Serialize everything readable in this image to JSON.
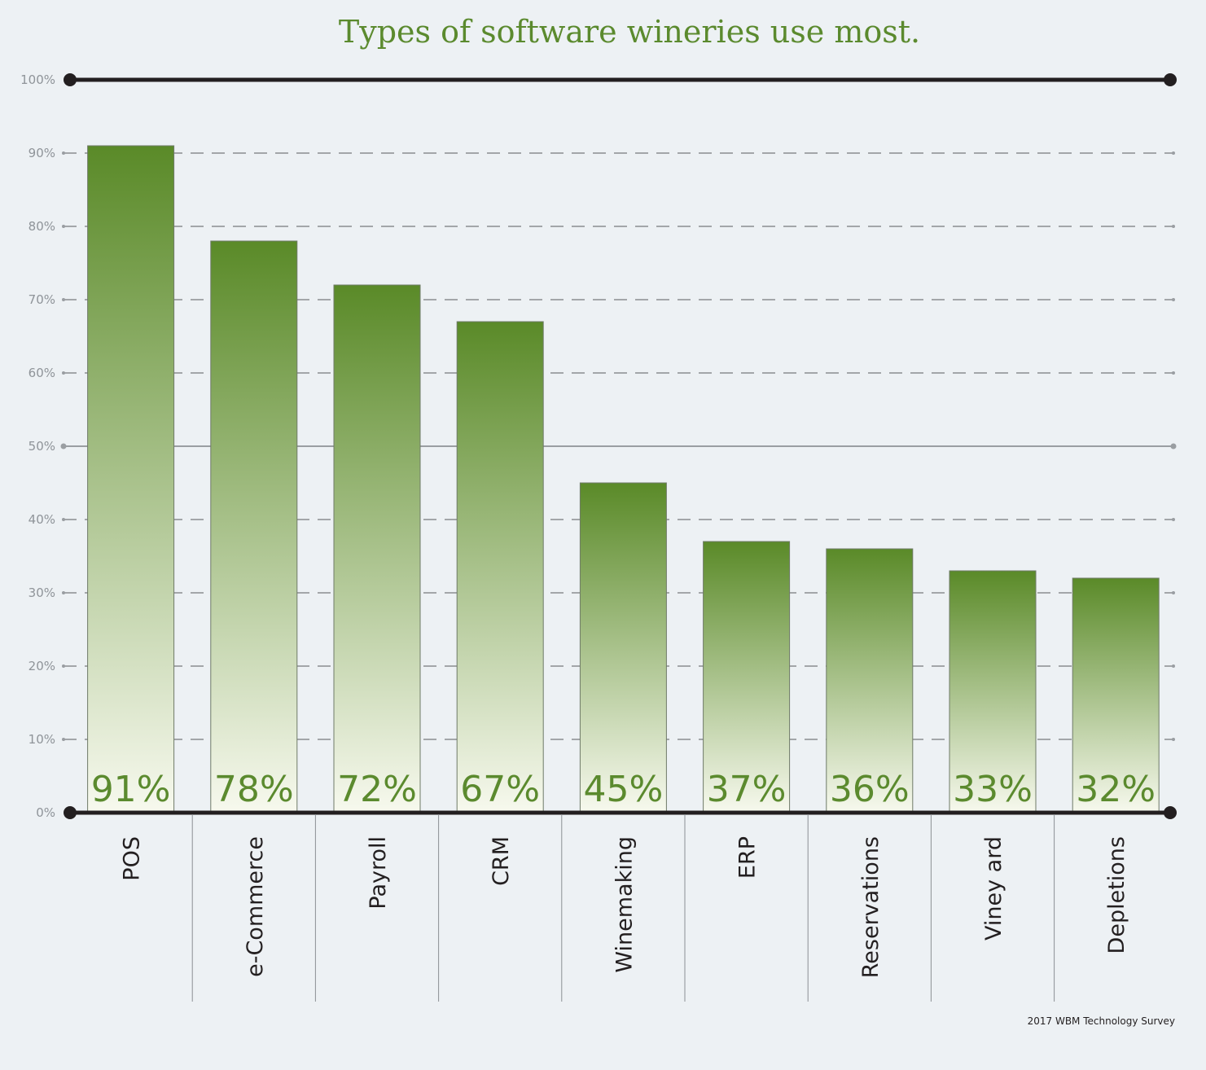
{
  "chart_data": {
    "type": "bar",
    "title": "Types of software wineries use most.",
    "source": "2017 WBM Technology Survey",
    "categories": [
      "POS",
      "e-Commerce",
      "Payroll",
      "CRM",
      "Winemaking",
      "ERP",
      "Reservations",
      "Viney ard",
      "Depletions"
    ],
    "values": [
      91,
      78,
      72,
      67,
      45,
      37,
      36,
      33,
      32
    ],
    "value_labels": [
      "91%",
      "78%",
      "72%",
      "67%",
      "45%",
      "37%",
      "36%",
      "33%",
      "32%"
    ],
    "y_ticks": [
      "0%",
      "10%",
      "20%",
      "30%",
      "40%",
      "50%",
      "60%",
      "70%",
      "80%",
      "90%",
      "100%"
    ],
    "ylim": [
      0,
      100
    ],
    "grid": true,
    "colors": {
      "bar_top": "#5a8a28",
      "bar_bottom": "#f7f9ee",
      "label": "#5b8a2e",
      "axis": "#231f20",
      "grid": "#a3a6a9",
      "background": "#edf1f4"
    }
  }
}
